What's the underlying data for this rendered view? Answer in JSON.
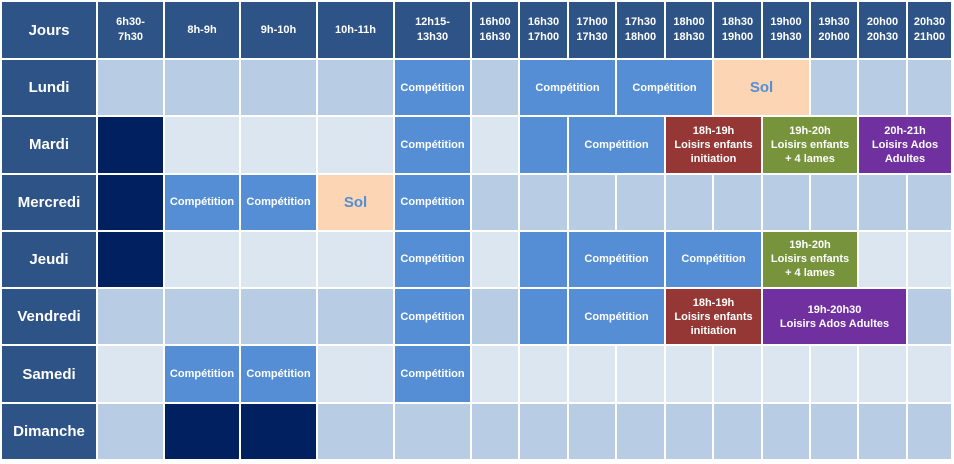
{
  "header": {
    "corner": "Jours",
    "slots": [
      [
        "6h30-",
        "7h30"
      ],
      [
        "8h-9h"
      ],
      [
        "9h-10h"
      ],
      [
        "10h-11h"
      ],
      [
        "12h15-",
        "13h30"
      ],
      [
        "16h00",
        "16h30"
      ],
      [
        "16h30",
        "17h00"
      ],
      [
        "17h00",
        "17h30"
      ],
      [
        "17h30",
        "18h00"
      ],
      [
        "18h00",
        "18h30"
      ],
      [
        "18h30",
        "19h00"
      ],
      [
        "19h00",
        "19h30"
      ],
      [
        "19h30",
        "20h00"
      ],
      [
        "20h00",
        "20h30"
      ],
      [
        "20h30",
        "21h00"
      ]
    ]
  },
  "days": [
    {
      "name": "Lundi",
      "cells": [
        {
          "style": "a"
        },
        {
          "style": "a"
        },
        {
          "style": "a"
        },
        {
          "style": "a"
        },
        {
          "style": "comp",
          "lines": [
            "Compétition"
          ]
        },
        {
          "style": "a"
        },
        {
          "style": "comp",
          "span": 2,
          "lines": [
            "Compétition"
          ]
        },
        {
          "style": "comp",
          "span": 2,
          "lines": [
            "Compétition"
          ]
        },
        {
          "style": "sol",
          "span": 2,
          "lines": [
            "Sol"
          ]
        },
        {
          "style": "a"
        },
        {
          "style": "a"
        },
        {
          "style": "a"
        }
      ]
    },
    {
      "name": "Mardi",
      "cells": [
        {
          "style": "navy"
        },
        {
          "style": "b"
        },
        {
          "style": "b"
        },
        {
          "style": "b"
        },
        {
          "style": "comp",
          "lines": [
            "Compétition"
          ]
        },
        {
          "style": "b"
        },
        {
          "style": "comp"
        },
        {
          "style": "comp",
          "span": 2,
          "lines": [
            "Compétition"
          ]
        },
        {
          "style": "red",
          "span": 2,
          "lines": [
            "18h-19h",
            "Loisirs enfants",
            "initiation"
          ]
        },
        {
          "style": "green",
          "span": 2,
          "lines": [
            "19h-20h",
            "Loisirs enfants",
            "+ 4 lames"
          ]
        },
        {
          "style": "purple",
          "span": 2,
          "lines": [
            "20h-21h",
            "Loisirs Ados",
            "Adultes"
          ]
        }
      ]
    },
    {
      "name": "Mercredi",
      "cells": [
        {
          "style": "navy"
        },
        {
          "style": "comp",
          "lines": [
            "Compétition"
          ]
        },
        {
          "style": "comp",
          "lines": [
            "Compétition"
          ]
        },
        {
          "style": "sol",
          "lines": [
            "Sol"
          ]
        },
        {
          "style": "comp",
          "lines": [
            "Compétition"
          ]
        },
        {
          "style": "a"
        },
        {
          "style": "a"
        },
        {
          "style": "a"
        },
        {
          "style": "a"
        },
        {
          "style": "a"
        },
        {
          "style": "a"
        },
        {
          "style": "a"
        },
        {
          "style": "a"
        },
        {
          "style": "a"
        },
        {
          "style": "a"
        }
      ]
    },
    {
      "name": "Jeudi",
      "cells": [
        {
          "style": "navy"
        },
        {
          "style": "b"
        },
        {
          "style": "b"
        },
        {
          "style": "b"
        },
        {
          "style": "comp",
          "lines": [
            "Compétition"
          ]
        },
        {
          "style": "b"
        },
        {
          "style": "comp"
        },
        {
          "style": "comp",
          "span": 2,
          "lines": [
            "Compétition"
          ]
        },
        {
          "style": "comp",
          "span": 2,
          "lines": [
            "Compétition"
          ]
        },
        {
          "style": "green",
          "span": 2,
          "lines": [
            "19h-20h",
            "Loisirs enfants",
            "+ 4 lames"
          ]
        },
        {
          "style": "b"
        },
        {
          "style": "b"
        }
      ]
    },
    {
      "name": "Vendredi",
      "cells": [
        {
          "style": "a"
        },
        {
          "style": "a"
        },
        {
          "style": "a"
        },
        {
          "style": "a"
        },
        {
          "style": "comp",
          "lines": [
            "Compétition"
          ]
        },
        {
          "style": "a"
        },
        {
          "style": "comp"
        },
        {
          "style": "comp",
          "span": 2,
          "lines": [
            "Compétition"
          ]
        },
        {
          "style": "red",
          "span": 2,
          "lines": [
            "18h-19h",
            "Loisirs enfants",
            "initiation"
          ]
        },
        {
          "style": "purple",
          "span": 3,
          "lines": [
            "19h-20h30",
            "Loisirs Ados Adultes"
          ]
        },
        {
          "style": "a"
        }
      ]
    },
    {
      "name": "Samedi",
      "cells": [
        {
          "style": "b"
        },
        {
          "style": "comp",
          "lines": [
            "Compétition"
          ]
        },
        {
          "style": "comp",
          "lines": [
            "Compétition"
          ]
        },
        {
          "style": "b"
        },
        {
          "style": "comp",
          "lines": [
            "Compétition"
          ]
        },
        {
          "style": "b"
        },
        {
          "style": "b"
        },
        {
          "style": "b"
        },
        {
          "style": "b"
        },
        {
          "style": "b"
        },
        {
          "style": "b"
        },
        {
          "style": "b"
        },
        {
          "style": "b"
        },
        {
          "style": "b"
        },
        {
          "style": "b"
        }
      ]
    },
    {
      "name": "Dimanche",
      "cells": [
        {
          "style": "a"
        },
        {
          "style": "navy"
        },
        {
          "style": "navy"
        },
        {
          "style": "a"
        },
        {
          "style": "a"
        },
        {
          "style": "a"
        },
        {
          "style": "a"
        },
        {
          "style": "a"
        },
        {
          "style": "a"
        },
        {
          "style": "a"
        },
        {
          "style": "a"
        },
        {
          "style": "a"
        },
        {
          "style": "a"
        },
        {
          "style": "a"
        },
        {
          "style": "a"
        }
      ]
    }
  ],
  "colors": {
    "header_bg": "#2e5387",
    "row_light_blue": "#b8cce4",
    "row_pale_blue": "#dce6f1",
    "navy": "#002060",
    "competition": "#558ed5",
    "sol": "#fcd5b4",
    "loisirs_initiation": "#953735",
    "loisirs_4_lames": "#77933c",
    "loisirs_ados_adultes": "#7030a0"
  }
}
